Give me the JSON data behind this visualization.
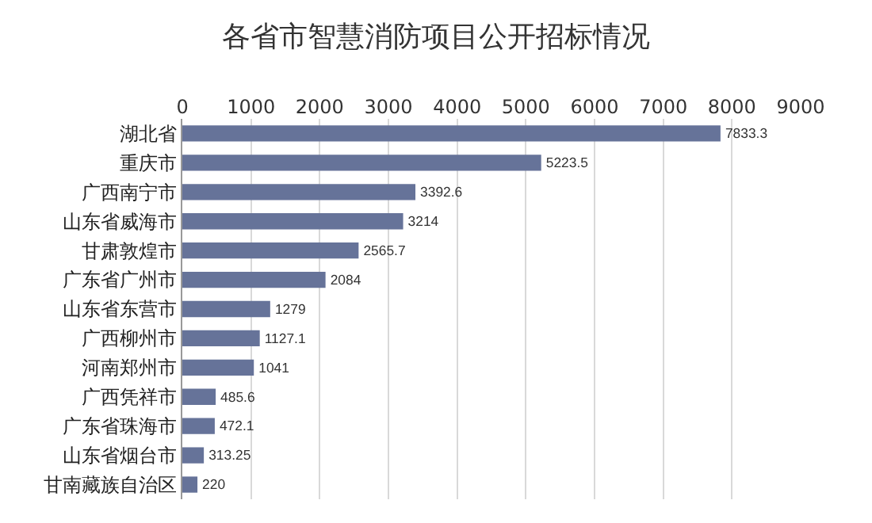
{
  "chart_data": {
    "type": "bar",
    "title": "各省市智慧消防项目公开招标情况",
    "orientation": "horizontal",
    "categories": [
      "湖北省",
      "重庆市",
      "广西南宁市",
      "山东省威海市",
      "甘肃敦煌市",
      "广东省广州市",
      "山东省东营市",
      "广西柳州市",
      "河南郑州市",
      "广西凭祥市",
      "广东省珠海市",
      "山东省烟台市",
      "甘南藏族自治区"
    ],
    "values": [
      7833.3,
      5223.5,
      3392.6,
      3214,
      2565.7,
      2084,
      1279,
      1127.1,
      1041,
      485.6,
      472.1,
      313.25,
      220
    ],
    "color": "#667399",
    "xlim": [
      0,
      9000
    ],
    "xticks": [
      0,
      1000,
      2000,
      3000,
      4000,
      5000,
      6000,
      7000,
      8000,
      9000
    ],
    "grid": "x",
    "data_labels": true
  }
}
